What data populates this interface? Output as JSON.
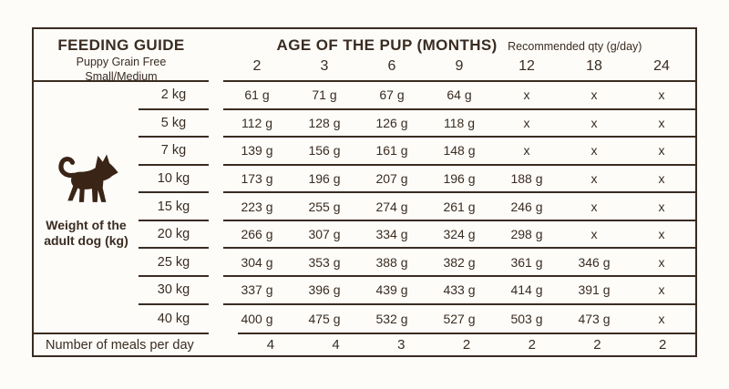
{
  "page": {
    "background": "#fdfcf9",
    "ink_color": "#3a2c21",
    "dog_color": "#3a2415"
  },
  "header": {
    "left": {
      "title": "FEEDING GUIDE",
      "subtitle_line1": "Puppy Grain Free",
      "subtitle_line2": "Small/Medium"
    },
    "right": {
      "title": "AGE OF THE PUP (MONTHS)",
      "subtitle": "Recommended qty (g/day)"
    },
    "age_columns": [
      "2",
      "3",
      "6",
      "9",
      "12",
      "18",
      "24"
    ]
  },
  "left_panel": {
    "icon": "dog-icon",
    "label_line1": "Weight of the",
    "label_line2": "adult dog (kg)"
  },
  "rows": [
    {
      "weight": "2 kg",
      "values": [
        "61 g",
        "71 g",
        "67 g",
        "64 g",
        "x",
        "x",
        "x"
      ]
    },
    {
      "weight": "5 kg",
      "values": [
        "112 g",
        "128 g",
        "126 g",
        "118 g",
        "x",
        "x",
        "x"
      ]
    },
    {
      "weight": "7 kg",
      "values": [
        "139 g",
        "156 g",
        "161 g",
        "148 g",
        "x",
        "x",
        "x"
      ]
    },
    {
      "weight": "10 kg",
      "values": [
        "173 g",
        "196 g",
        "207 g",
        "196 g",
        "188 g",
        "x",
        "x"
      ]
    },
    {
      "weight": "15 kg",
      "values": [
        "223 g",
        "255 g",
        "274 g",
        "261 g",
        "246 g",
        "x",
        "x"
      ]
    },
    {
      "weight": "20 kg",
      "values": [
        "266 g",
        "307 g",
        "334 g",
        "324 g",
        "298 g",
        "x",
        "x"
      ]
    },
    {
      "weight": "25 kg",
      "values": [
        "304 g",
        "353 g",
        "388 g",
        "382 g",
        "361 g",
        "346 g",
        "x"
      ]
    },
    {
      "weight": "30 kg",
      "values": [
        "337 g",
        "396 g",
        "439 g",
        "433 g",
        "414 g",
        "391 g",
        "x"
      ]
    },
    {
      "weight": "40 kg",
      "values": [
        "400 g",
        "475 g",
        "532 g",
        "527 g",
        "503 g",
        "473 g",
        "x"
      ]
    }
  ],
  "meals": {
    "label": "Number of meals per day",
    "values": [
      "4",
      "4",
      "3",
      "2",
      "2",
      "2",
      "2"
    ]
  }
}
